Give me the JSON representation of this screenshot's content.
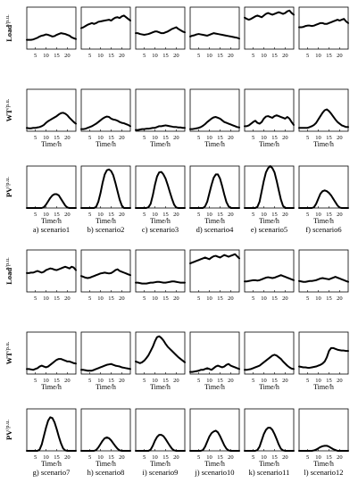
{
  "figure": {
    "row_labels": [
      {
        "name": "Load",
        "unit": "/p.u."
      },
      {
        "name": "WT",
        "unit": "/p.u."
      },
      {
        "name": "PV",
        "unit": "/p.u."
      }
    ],
    "x_axis_label": "Time/h",
    "x_ticks": [
      "5",
      "10",
      "15",
      "20"
    ],
    "captions": [
      "a) scenario1",
      "b) scenario2",
      "c) scenario3",
      "d) scenario4",
      "e) scenario5",
      "f) scenario6",
      "g) scenario7",
      "h) scenario8",
      "i) scenario9",
      "j) scenario10",
      "k) scenario11",
      "l) scenario12"
    ]
  },
  "chart_data": [
    {
      "type": "line",
      "scenario": "scenario1",
      "x": [
        1,
        24
      ],
      "ylim": [
        0,
        1
      ],
      "load": [
        0.22,
        0.22,
        0.22,
        0.23,
        0.25,
        0.27,
        0.3,
        0.32,
        0.33,
        0.35,
        0.34,
        0.32,
        0.3,
        0.31,
        0.34,
        0.36,
        0.38,
        0.37,
        0.36,
        0.34,
        0.32,
        0.28,
        0.26,
        0.24
      ],
      "wt": [
        0.08,
        0.07,
        0.07,
        0.08,
        0.08,
        0.09,
        0.1,
        0.12,
        0.15,
        0.2,
        0.24,
        0.27,
        0.3,
        0.33,
        0.36,
        0.4,
        0.43,
        0.44,
        0.42,
        0.38,
        0.32,
        0.27,
        0.22,
        0.18
      ],
      "pv": [
        0,
        0,
        0,
        0,
        0,
        0,
        0,
        0,
        0.02,
        0.08,
        0.16,
        0.24,
        0.3,
        0.33,
        0.33,
        0.3,
        0.22,
        0.14,
        0.06,
        0.01,
        0,
        0,
        0,
        0
      ]
    },
    {
      "type": "line",
      "scenario": "scenario2",
      "x": [
        1,
        24
      ],
      "ylim": [
        0,
        1
      ],
      "load": [
        0.5,
        0.52,
        0.55,
        0.58,
        0.6,
        0.62,
        0.6,
        0.62,
        0.65,
        0.66,
        0.67,
        0.68,
        0.69,
        0.7,
        0.68,
        0.72,
        0.75,
        0.76,
        0.74,
        0.78,
        0.8,
        0.76,
        0.72,
        0.68
      ],
      "wt": [
        0.05,
        0.05,
        0.06,
        0.08,
        0.1,
        0.12,
        0.15,
        0.18,
        0.22,
        0.26,
        0.3,
        0.33,
        0.35,
        0.34,
        0.3,
        0.28,
        0.27,
        0.25,
        0.22,
        0.2,
        0.19,
        0.17,
        0.15,
        0.12
      ],
      "pv": [
        0,
        0,
        0,
        0,
        0,
        0,
        0,
        0.03,
        0.15,
        0.35,
        0.6,
        0.8,
        0.9,
        0.92,
        0.88,
        0.78,
        0.6,
        0.4,
        0.2,
        0.06,
        0,
        0,
        0,
        0
      ]
    },
    {
      "type": "line",
      "scenario": "scenario3",
      "x": [
        1,
        24
      ],
      "ylim": [
        0,
        1
      ],
      "load": [
        0.38,
        0.38,
        0.36,
        0.35,
        0.34,
        0.35,
        0.36,
        0.38,
        0.4,
        0.42,
        0.42,
        0.4,
        0.38,
        0.38,
        0.4,
        0.42,
        0.45,
        0.48,
        0.5,
        0.52,
        0.48,
        0.45,
        0.42,
        0.4
      ],
      "wt": [
        0.03,
        0.03,
        0.04,
        0.05,
        0.05,
        0.06,
        0.06,
        0.07,
        0.08,
        0.08,
        0.1,
        0.12,
        0.12,
        0.13,
        0.14,
        0.13,
        0.12,
        0.11,
        0.1,
        0.1,
        0.09,
        0.09,
        0.08,
        0.08
      ],
      "pv": [
        0,
        0,
        0,
        0,
        0,
        0,
        0.02,
        0.1,
        0.3,
        0.55,
        0.75,
        0.85,
        0.86,
        0.8,
        0.7,
        0.55,
        0.38,
        0.22,
        0.08,
        0.01,
        0,
        0,
        0,
        0
      ]
    },
    {
      "type": "line",
      "scenario": "scenario4",
      "x": [
        1,
        24
      ],
      "ylim": [
        0,
        1
      ],
      "load": [
        0.3,
        0.32,
        0.33,
        0.35,
        0.36,
        0.35,
        0.34,
        0.33,
        0.32,
        0.34,
        0.36,
        0.38,
        0.37,
        0.36,
        0.35,
        0.34,
        0.33,
        0.32,
        0.31,
        0.3,
        0.29,
        0.28,
        0.27,
        0.25
      ],
      "wt": [
        0.05,
        0.05,
        0.06,
        0.07,
        0.08,
        0.1,
        0.13,
        0.17,
        0.22,
        0.26,
        0.3,
        0.33,
        0.34,
        0.32,
        0.3,
        0.26,
        0.22,
        0.2,
        0.18,
        0.16,
        0.14,
        0.12,
        0.1,
        0.09
      ],
      "pv": [
        0,
        0,
        0,
        0,
        0,
        0,
        0,
        0.04,
        0.15,
        0.35,
        0.55,
        0.72,
        0.8,
        0.8,
        0.7,
        0.52,
        0.32,
        0.14,
        0.04,
        0,
        0,
        0,
        0,
        0
      ]
    },
    {
      "type": "line",
      "scenario": "scenario5",
      "x": [
        1,
        24
      ],
      "ylim": [
        0,
        1
      ],
      "load": [
        0.75,
        0.72,
        0.7,
        0.72,
        0.75,
        0.78,
        0.8,
        0.78,
        0.76,
        0.8,
        0.84,
        0.86,
        0.84,
        0.82,
        0.84,
        0.86,
        0.88,
        0.86,
        0.84,
        0.86,
        0.9,
        0.92,
        0.86,
        0.82
      ],
      "wt": [
        0.12,
        0.12,
        0.14,
        0.18,
        0.22,
        0.25,
        0.2,
        0.18,
        0.22,
        0.3,
        0.35,
        0.36,
        0.34,
        0.32,
        0.36,
        0.38,
        0.36,
        0.34,
        0.32,
        0.3,
        0.34,
        0.3,
        0.22,
        0.15
      ],
      "pv": [
        0,
        0,
        0,
        0,
        0,
        0,
        0.03,
        0.15,
        0.4,
        0.65,
        0.85,
        0.95,
        1.0,
        0.95,
        0.85,
        0.65,
        0.42,
        0.2,
        0.05,
        0,
        0,
        0,
        0,
        0
      ]
    },
    {
      "type": "line",
      "scenario": "scenario6",
      "x": [
        1,
        24
      ],
      "ylim": [
        0,
        1
      ],
      "load": [
        0.52,
        0.52,
        0.53,
        0.55,
        0.56,
        0.56,
        0.55,
        0.56,
        0.58,
        0.6,
        0.62,
        0.62,
        0.6,
        0.6,
        0.62,
        0.64,
        0.66,
        0.68,
        0.7,
        0.68,
        0.7,
        0.72,
        0.66,
        0.62
      ],
      "wt": [
        0.08,
        0.08,
        0.08,
        0.08,
        0.08,
        0.1,
        0.12,
        0.15,
        0.2,
        0.28,
        0.36,
        0.44,
        0.5,
        0.52,
        0.48,
        0.42,
        0.35,
        0.28,
        0.22,
        0.18,
        0.14,
        0.12,
        0.1,
        0.1
      ],
      "pv": [
        0,
        0,
        0,
        0,
        0,
        0,
        0,
        0.02,
        0.1,
        0.22,
        0.34,
        0.4,
        0.42,
        0.4,
        0.36,
        0.3,
        0.22,
        0.14,
        0.06,
        0.01,
        0,
        0,
        0,
        0
      ]
    },
    {
      "type": "line",
      "scenario": "scenario7",
      "x": [
        1,
        24
      ],
      "ylim": [
        0,
        1
      ],
      "load": [
        0.45,
        0.45,
        0.46,
        0.46,
        0.48,
        0.5,
        0.48,
        0.46,
        0.48,
        0.52,
        0.54,
        0.56,
        0.55,
        0.53,
        0.52,
        0.54,
        0.56,
        0.58,
        0.6,
        0.58,
        0.56,
        0.6,
        0.58,
        0.52
      ],
      "wt": [
        0.12,
        0.12,
        0.11,
        0.1,
        0.12,
        0.14,
        0.18,
        0.2,
        0.18,
        0.16,
        0.18,
        0.22,
        0.26,
        0.3,
        0.34,
        0.36,
        0.36,
        0.34,
        0.32,
        0.3,
        0.3,
        0.28,
        0.26,
        0.25
      ],
      "pv": [
        0,
        0,
        0,
        0,
        0,
        0,
        0.03,
        0.15,
        0.35,
        0.55,
        0.72,
        0.8,
        0.78,
        0.68,
        0.52,
        0.34,
        0.18,
        0.06,
        0.01,
        0,
        0,
        0,
        0,
        0
      ]
    },
    {
      "type": "line",
      "scenario": "scenario8",
      "x": [
        1,
        24
      ],
      "ylim": [
        0,
        1
      ],
      "load": [
        0.38,
        0.36,
        0.34,
        0.33,
        0.34,
        0.36,
        0.38,
        0.4,
        0.42,
        0.44,
        0.45,
        0.46,
        0.45,
        0.44,
        0.45,
        0.48,
        0.52,
        0.54,
        0.5,
        0.48,
        0.46,
        0.44,
        0.42,
        0.4
      ],
      "wt": [
        0.1,
        0.1,
        0.09,
        0.08,
        0.08,
        0.08,
        0.1,
        0.12,
        0.14,
        0.16,
        0.18,
        0.2,
        0.22,
        0.23,
        0.24,
        0.22,
        0.2,
        0.19,
        0.18,
        0.16,
        0.15,
        0.14,
        0.13,
        0.12
      ],
      "pv": [
        0,
        0,
        0,
        0,
        0,
        0,
        0,
        0.02,
        0.08,
        0.16,
        0.24,
        0.3,
        0.32,
        0.3,
        0.25,
        0.18,
        0.11,
        0.05,
        0.01,
        0,
        0,
        0,
        0,
        0
      ]
    },
    {
      "type": "line",
      "scenario": "scenario9",
      "x": [
        1,
        24
      ],
      "ylim": [
        0,
        1
      ],
      "load": [
        0.22,
        0.22,
        0.21,
        0.2,
        0.2,
        0.2,
        0.21,
        0.22,
        0.22,
        0.23,
        0.24,
        0.24,
        0.23,
        0.22,
        0.22,
        0.23,
        0.24,
        0.25,
        0.25,
        0.24,
        0.23,
        0.22,
        0.22,
        0.22
      ],
      "wt": [
        0.3,
        0.28,
        0.26,
        0.28,
        0.32,
        0.38,
        0.45,
        0.55,
        0.65,
        0.78,
        0.88,
        0.9,
        0.86,
        0.8,
        0.72,
        0.65,
        0.6,
        0.55,
        0.5,
        0.45,
        0.4,
        0.36,
        0.32,
        0.28
      ],
      "pv": [
        0,
        0,
        0,
        0,
        0,
        0,
        0,
        0.03,
        0.12,
        0.24,
        0.33,
        0.38,
        0.38,
        0.35,
        0.28,
        0.2,
        0.12,
        0.05,
        0.01,
        0,
        0,
        0,
        0,
        0
      ]
    },
    {
      "type": "line",
      "scenario": "scenario10",
      "x": [
        1,
        24
      ],
      "ylim": [
        0,
        1
      ],
      "load": [
        0.68,
        0.7,
        0.72,
        0.74,
        0.76,
        0.78,
        0.8,
        0.82,
        0.8,
        0.78,
        0.82,
        0.85,
        0.86,
        0.84,
        0.82,
        0.85,
        0.88,
        0.86,
        0.84,
        0.86,
        0.88,
        0.9,
        0.85,
        0.8
      ],
      "wt": [
        0.05,
        0.05,
        0.06,
        0.07,
        0.08,
        0.1,
        0.1,
        0.12,
        0.14,
        0.12,
        0.1,
        0.14,
        0.18,
        0.2,
        0.18,
        0.16,
        0.18,
        0.22,
        0.24,
        0.2,
        0.18,
        0.16,
        0.14,
        0.12
      ],
      "pv": [
        0,
        0,
        0,
        0,
        0,
        0,
        0.02,
        0.1,
        0.22,
        0.34,
        0.42,
        0.46,
        0.48,
        0.44,
        0.35,
        0.24,
        0.13,
        0.05,
        0.01,
        0,
        0,
        0,
        0,
        0
      ]
    },
    {
      "type": "line",
      "scenario": "scenario11",
      "x": [
        1,
        24
      ],
      "ylim": [
        0,
        1
      ],
      "load": [
        0.25,
        0.25,
        0.26,
        0.27,
        0.28,
        0.28,
        0.27,
        0.28,
        0.3,
        0.32,
        0.34,
        0.35,
        0.34,
        0.33,
        0.34,
        0.36,
        0.38,
        0.4,
        0.38,
        0.36,
        0.34,
        0.32,
        0.3,
        0.28
      ],
      "wt": [
        0.1,
        0.1,
        0.11,
        0.12,
        0.14,
        0.16,
        0.18,
        0.2,
        0.24,
        0.28,
        0.32,
        0.36,
        0.4,
        0.44,
        0.46,
        0.44,
        0.4,
        0.36,
        0.3,
        0.25,
        0.2,
        0.16,
        0.13,
        0.12
      ],
      "pv": [
        0,
        0,
        0,
        0,
        0,
        0,
        0.02,
        0.1,
        0.25,
        0.4,
        0.5,
        0.55,
        0.55,
        0.5,
        0.4,
        0.28,
        0.15,
        0.05,
        0.01,
        0,
        0,
        0,
        0,
        0
      ]
    },
    {
      "type": "line",
      "scenario": "scenario12",
      "x": [
        1,
        24
      ],
      "ylim": [
        0,
        1
      ],
      "load": [
        0.26,
        0.25,
        0.24,
        0.24,
        0.25,
        0.26,
        0.26,
        0.27,
        0.28,
        0.3,
        0.32,
        0.33,
        0.32,
        0.31,
        0.3,
        0.32,
        0.34,
        0.36,
        0.34,
        0.32,
        0.3,
        0.28,
        0.26,
        0.24
      ],
      "wt": [
        0.18,
        0.17,
        0.16,
        0.16,
        0.15,
        0.15,
        0.16,
        0.17,
        0.18,
        0.2,
        0.22,
        0.25,
        0.3,
        0.4,
        0.55,
        0.62,
        0.62,
        0.6,
        0.58,
        0.57,
        0.56,
        0.56,
        0.55,
        0.55
      ],
      "pv": [
        0,
        0,
        0,
        0,
        0,
        0,
        0,
        0.01,
        0.03,
        0.06,
        0.09,
        0.11,
        0.12,
        0.12,
        0.1,
        0.07,
        0.04,
        0.02,
        0,
        0,
        0,
        0,
        0,
        0
      ]
    }
  ]
}
